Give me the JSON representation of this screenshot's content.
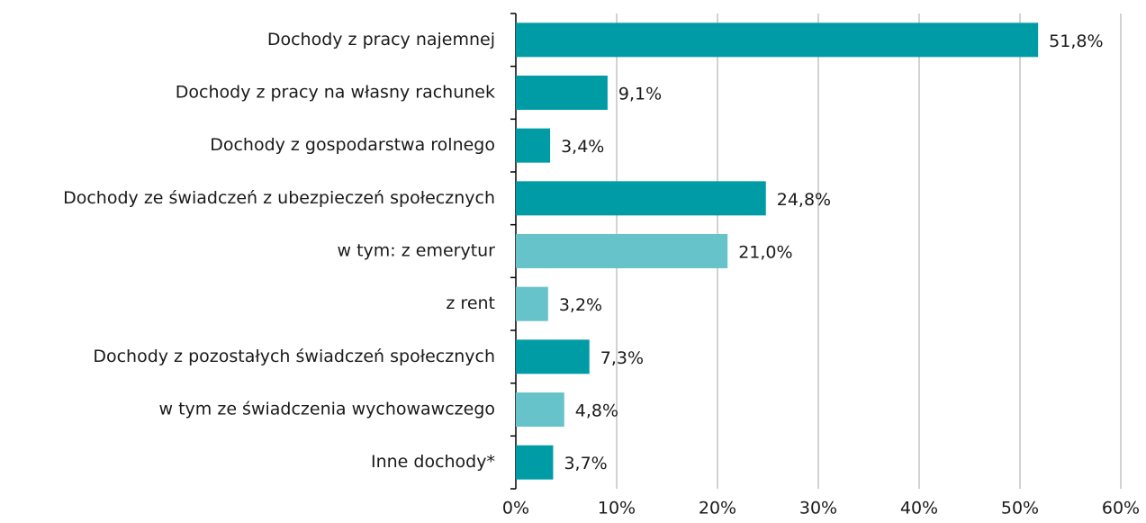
{
  "chart_data": {
    "type": "barh",
    "categories": [
      "Dochody z pracy najemnej",
      "Dochody z pracy na własny rachunek",
      "Dochody z gospodarstwa rolnego",
      "Dochody ze świadczeń z ubezpieczeń społecznych",
      "w tym: z emerytur",
      "z rent",
      "Dochody z pozostałych świadczeń społecznych",
      "w tym ze świadczenia wychowawczego",
      "Inne dochody*"
    ],
    "values": [
      51.8,
      9.1,
      3.4,
      24.8,
      21.0,
      3.2,
      7.3,
      4.8,
      3.7
    ],
    "value_labels": [
      "51,8%",
      "9,1%",
      "3,4%",
      "24,8%",
      "21,0%",
      "3,2%",
      "7,3%",
      "4,8%",
      "3,7%"
    ],
    "colors": [
      "#009ca6",
      "#009ca6",
      "#009ca6",
      "#009ca6",
      "#66c3c9",
      "#66c3c9",
      "#009ca6",
      "#66c3c9",
      "#009ca6"
    ],
    "xlim": [
      0,
      60
    ],
    "xticks": [
      {
        "value": 0,
        "label": "0%"
      },
      {
        "value": 10,
        "label": "10%"
      },
      {
        "value": 20,
        "label": "20%"
      },
      {
        "value": 30,
        "label": "30%"
      },
      {
        "value": 40,
        "label": "40%"
      },
      {
        "value": 50,
        "label": "50%"
      },
      {
        "value": 60,
        "label": "60%"
      }
    ],
    "grid": true
  }
}
